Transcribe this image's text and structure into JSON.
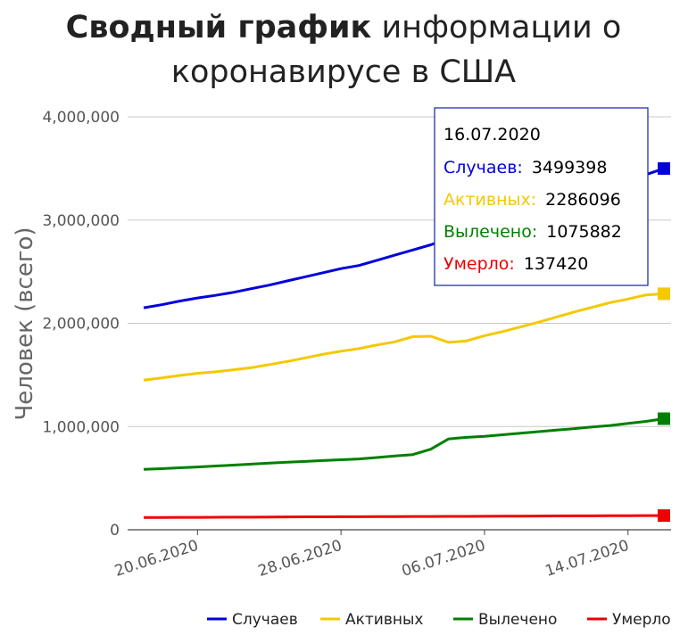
{
  "title": {
    "bold": "Сводный график",
    "rest1": "информации о",
    "line2": "коронавирусе в США"
  },
  "chart_data": {
    "type": "line",
    "ylabel": "Человек (всего)",
    "ylim": [
      0,
      4000000
    ],
    "yticks": [
      0,
      1000000,
      2000000,
      3000000,
      4000000
    ],
    "ytick_labels": [
      "0",
      "1,000,000",
      "2,000,000",
      "3,000,000",
      "4,000,000"
    ],
    "xtick_labels": [
      "20.06.2020",
      "28.06.2020",
      "06.07.2020",
      "14.07.2020"
    ],
    "xtick_index": [
      3,
      11,
      19,
      27
    ],
    "x": [
      "17.06.2020",
      "18.06.2020",
      "19.06.2020",
      "20.06.2020",
      "21.06.2020",
      "22.06.2020",
      "23.06.2020",
      "24.06.2020",
      "25.06.2020",
      "26.06.2020",
      "27.06.2020",
      "28.06.2020",
      "29.06.2020",
      "30.06.2020",
      "01.07.2020",
      "02.07.2020",
      "03.07.2020",
      "04.07.2020",
      "05.07.2020",
      "06.07.2020",
      "07.07.2020",
      "08.07.2020",
      "09.07.2020",
      "10.07.2020",
      "11.07.2020",
      "12.07.2020",
      "13.07.2020",
      "14.07.2020",
      "15.07.2020",
      "16.07.2020"
    ],
    "series": [
      {
        "name": "Случаев",
        "color": "#0000dd",
        "values": [
          2150000,
          2180000,
          2215000,
          2245000,
          2270000,
          2300000,
          2335000,
          2370000,
          2410000,
          2450000,
          2490000,
          2530000,
          2560000,
          2610000,
          2660000,
          2710000,
          2760000,
          2820000,
          2860000,
          2910000,
          2970000,
          3030000,
          3090000,
          3150000,
          3210000,
          3270000,
          3330000,
          3390000,
          3440000,
          3499398
        ]
      },
      {
        "name": "Активных",
        "color": "#f5c800",
        "values": [
          1450000,
          1470000,
          1495000,
          1515000,
          1530000,
          1550000,
          1570000,
          1600000,
          1630000,
          1665000,
          1700000,
          1730000,
          1755000,
          1790000,
          1820000,
          1870000,
          1875000,
          1815000,
          1830000,
          1880000,
          1920000,
          1965000,
          2010000,
          2060000,
          2110000,
          2155000,
          2200000,
          2235000,
          2275000,
          2286096
        ]
      },
      {
        "name": "Вылечено",
        "color": "#008000",
        "values": [
          585000,
          592000,
          600000,
          608000,
          618000,
          626000,
          636000,
          645000,
          654000,
          662000,
          670000,
          678000,
          686000,
          700000,
          715000,
          728000,
          780000,
          880000,
          895000,
          905000,
          920000,
          935000,
          950000,
          965000,
          980000,
          995000,
          1010000,
          1030000,
          1050000,
          1075882
        ]
      },
      {
        "name": "Умерло",
        "color": "#ee0000",
        "values": [
          118000,
          119000,
          120000,
          120500,
          121000,
          121500,
          122000,
          123000,
          124000,
          125000,
          125500,
          126000,
          126500,
          127000,
          128000,
          128500,
          129000,
          129500,
          130000,
          130500,
          131000,
          132000,
          133000,
          134000,
          134500,
          135000,
          135500,
          136000,
          137000,
          137420
        ]
      }
    ],
    "legend_position": "bottom",
    "grid": true
  },
  "tooltip": {
    "date": "16.07.2020",
    "rows": [
      {
        "label": "Случаев:",
        "value": "3499398",
        "color": "#0000dd"
      },
      {
        "label": "Активных:",
        "value": "2286096",
        "color": "#f5c800"
      },
      {
        "label": "Вылечено:",
        "value": "1075882",
        "color": "#008000"
      },
      {
        "label": "Умерло:",
        "value": "137420",
        "color": "#ee0000"
      }
    ]
  }
}
